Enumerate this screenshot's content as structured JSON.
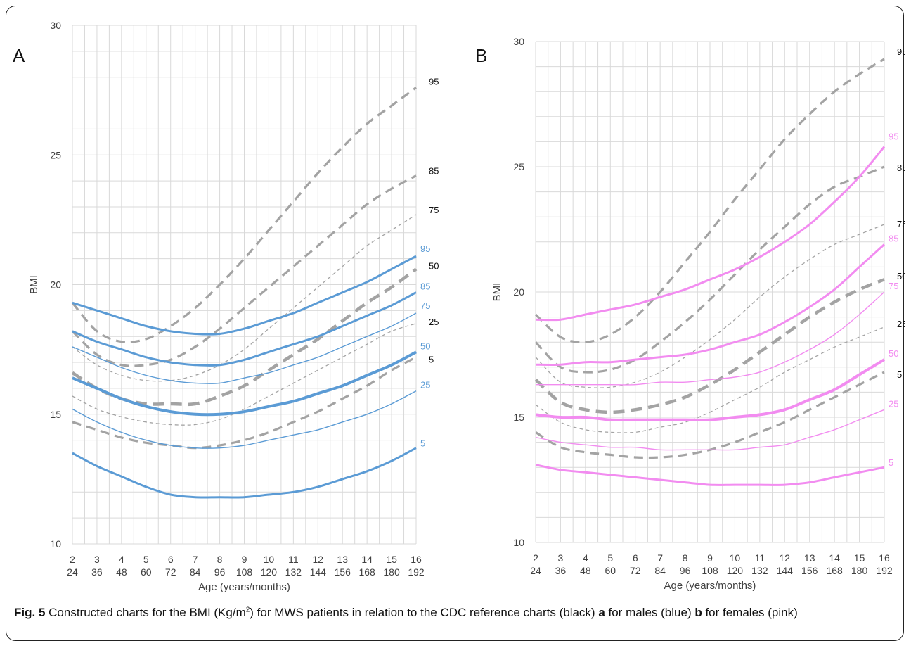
{
  "caption": {
    "fig": "Fig. 5",
    "part1": " Constructed charts for the BMI (Kg/m",
    "sup": "2",
    "part2": ") for MWS patients in relation to the CDC reference charts (black) ",
    "a": "a",
    "part3": " for males (blue) ",
    "b": "b",
    "part4": " for females (pink)"
  },
  "colors": {
    "reference": "#a3a3a3",
    "male": "#5b9bd5",
    "female": "#f28cf0",
    "grid": "#d9d9d9",
    "ref_label": "#111111"
  },
  "chart_data": [
    {
      "type": "line",
      "panel_label": "A",
      "xlabel": "Age (years/months)",
      "ylabel": "BMI",
      "ylim": [
        10,
        30
      ],
      "yticks": [
        10,
        15,
        20,
        25,
        30
      ],
      "xlim": [
        2,
        16
      ],
      "xticks_years": [
        "2",
        "3",
        "4",
        "5",
        "6",
        "7",
        "8",
        "9",
        "10",
        "11",
        "12",
        "13",
        "14",
        "15",
        "16"
      ],
      "xticks_months": [
        "24",
        "36",
        "48",
        "60",
        "72",
        "84",
        "96",
        "108",
        "120",
        "132",
        "144",
        "156",
        "168",
        "180",
        "192"
      ],
      "grid": true,
      "x": [
        2,
        3,
        4,
        5,
        6,
        7,
        8,
        9,
        10,
        11,
        12,
        13,
        14,
        15,
        16
      ],
      "series": [
        {
          "name": "95",
          "group": "reference",
          "values": [
            19.3,
            18.2,
            17.8,
            17.9,
            18.4,
            19.1,
            20.0,
            21.0,
            22.1,
            23.2,
            24.3,
            25.3,
            26.2,
            26.9,
            27.6
          ]
        },
        {
          "name": "85",
          "group": "reference",
          "values": [
            18.2,
            17.3,
            16.9,
            16.9,
            17.1,
            17.6,
            18.3,
            19.1,
            19.9,
            20.7,
            21.5,
            22.3,
            23.1,
            23.7,
            24.2
          ]
        },
        {
          "name": "75",
          "group": "reference",
          "values": [
            17.6,
            16.9,
            16.5,
            16.3,
            16.3,
            16.5,
            16.9,
            17.5,
            18.3,
            19.1,
            19.9,
            20.7,
            21.5,
            22.1,
            22.7
          ]
        },
        {
          "name": "50",
          "group": "reference",
          "values": [
            16.6,
            16.0,
            15.6,
            15.4,
            15.4,
            15.4,
            15.7,
            16.1,
            16.7,
            17.3,
            17.9,
            18.6,
            19.3,
            19.9,
            20.6
          ]
        },
        {
          "name": "25",
          "group": "reference",
          "values": [
            15.7,
            15.2,
            14.9,
            14.7,
            14.6,
            14.6,
            14.8,
            15.2,
            15.7,
            16.2,
            16.7,
            17.2,
            17.7,
            18.2,
            18.5
          ]
        },
        {
          "name": "5",
          "group": "reference",
          "values": [
            14.7,
            14.4,
            14.1,
            13.9,
            13.8,
            13.7,
            13.8,
            14.0,
            14.3,
            14.7,
            15.1,
            15.6,
            16.1,
            16.7,
            17.2
          ]
        },
        {
          "name": "95",
          "group": "male",
          "values": [
            19.3,
            19.0,
            18.7,
            18.4,
            18.2,
            18.1,
            18.1,
            18.3,
            18.6,
            18.9,
            19.3,
            19.7,
            20.1,
            20.6,
            21.1
          ]
        },
        {
          "name": "85",
          "group": "male",
          "values": [
            18.2,
            17.8,
            17.5,
            17.2,
            17.0,
            16.9,
            16.9,
            17.1,
            17.4,
            17.7,
            18.0,
            18.4,
            18.8,
            19.2,
            19.7
          ]
        },
        {
          "name": "75",
          "group": "male",
          "values": [
            17.6,
            17.2,
            16.8,
            16.5,
            16.3,
            16.2,
            16.2,
            16.4,
            16.6,
            16.9,
            17.2,
            17.6,
            18.0,
            18.4,
            18.9
          ]
        },
        {
          "name": "50",
          "group": "male",
          "values": [
            16.4,
            16.0,
            15.6,
            15.3,
            15.1,
            15.0,
            15.0,
            15.1,
            15.3,
            15.5,
            15.8,
            16.1,
            16.5,
            16.9,
            17.4
          ]
        },
        {
          "name": "25",
          "group": "male",
          "values": [
            15.2,
            14.7,
            14.3,
            14.0,
            13.8,
            13.7,
            13.7,
            13.8,
            14.0,
            14.2,
            14.4,
            14.7,
            15.0,
            15.4,
            15.9
          ]
        },
        {
          "name": "5",
          "group": "male",
          "values": [
            13.5,
            13.0,
            12.6,
            12.2,
            11.9,
            11.8,
            11.8,
            11.8,
            11.9,
            12.0,
            12.2,
            12.5,
            12.8,
            13.2,
            13.7
          ]
        }
      ]
    },
    {
      "type": "line",
      "panel_label": "B",
      "xlabel": "Age (years/months)",
      "ylabel": "BMI",
      "ylim": [
        10,
        30
      ],
      "yticks": [
        10,
        15,
        20,
        25,
        30
      ],
      "xlim": [
        2,
        16
      ],
      "xticks_years": [
        "2",
        "3",
        "4",
        "5",
        "6",
        "7",
        "8",
        "9",
        "10",
        "11",
        "12",
        "13",
        "14",
        "15",
        "16"
      ],
      "xticks_months": [
        "24",
        "36",
        "48",
        "60",
        "72",
        "84",
        "96",
        "108",
        "120",
        "132",
        "144",
        "156",
        "168",
        "180",
        "192"
      ],
      "grid": true,
      "x": [
        2,
        3,
        4,
        5,
        6,
        7,
        8,
        9,
        10,
        11,
        12,
        13,
        14,
        15,
        16
      ],
      "series": [
        {
          "name": "95",
          "group": "reference",
          "values": [
            19.1,
            18.2,
            18.0,
            18.3,
            19.0,
            20.0,
            21.2,
            22.4,
            23.7,
            24.9,
            26.1,
            27.1,
            28.0,
            28.7,
            29.3
          ]
        },
        {
          "name": "85",
          "group": "reference",
          "values": [
            18.0,
            17.0,
            16.8,
            16.9,
            17.3,
            18.0,
            18.8,
            19.7,
            20.7,
            21.7,
            22.6,
            23.5,
            24.2,
            24.6,
            25.0
          ]
        },
        {
          "name": "75",
          "group": "reference",
          "values": [
            17.4,
            16.4,
            16.2,
            16.2,
            16.4,
            16.8,
            17.4,
            18.1,
            18.9,
            19.8,
            20.6,
            21.3,
            21.9,
            22.3,
            22.7
          ]
        },
        {
          "name": "50",
          "group": "reference",
          "values": [
            16.5,
            15.6,
            15.3,
            15.2,
            15.3,
            15.5,
            15.8,
            16.3,
            16.9,
            17.6,
            18.3,
            19.0,
            19.6,
            20.1,
            20.5
          ]
        },
        {
          "name": "25",
          "group": "reference",
          "values": [
            15.5,
            14.8,
            14.5,
            14.4,
            14.4,
            14.6,
            14.8,
            15.2,
            15.7,
            16.2,
            16.8,
            17.3,
            17.8,
            18.2,
            18.6
          ]
        },
        {
          "name": "5",
          "group": "reference",
          "values": [
            14.4,
            13.8,
            13.6,
            13.5,
            13.4,
            13.4,
            13.5,
            13.7,
            14.0,
            14.4,
            14.8,
            15.3,
            15.8,
            16.3,
            16.8
          ]
        },
        {
          "name": "95",
          "group": "female",
          "values": [
            18.9,
            18.9,
            19.1,
            19.3,
            19.5,
            19.8,
            20.1,
            20.5,
            20.9,
            21.4,
            22.0,
            22.7,
            23.6,
            24.6,
            25.8
          ]
        },
        {
          "name": "85",
          "group": "female",
          "values": [
            17.1,
            17.1,
            17.2,
            17.2,
            17.3,
            17.4,
            17.5,
            17.7,
            18.0,
            18.3,
            18.8,
            19.4,
            20.1,
            21.0,
            21.9
          ]
        },
        {
          "name": "75",
          "group": "female",
          "values": [
            16.3,
            16.3,
            16.3,
            16.3,
            16.3,
            16.4,
            16.4,
            16.5,
            16.6,
            16.8,
            17.2,
            17.7,
            18.3,
            19.1,
            20.0
          ]
        },
        {
          "name": "50",
          "group": "female",
          "values": [
            15.1,
            15.0,
            15.0,
            14.9,
            14.9,
            14.9,
            14.9,
            14.9,
            15.0,
            15.1,
            15.3,
            15.7,
            16.1,
            16.7,
            17.3
          ]
        },
        {
          "name": "25",
          "group": "female",
          "values": [
            14.2,
            14.0,
            13.9,
            13.8,
            13.8,
            13.7,
            13.7,
            13.7,
            13.7,
            13.8,
            13.9,
            14.2,
            14.5,
            14.9,
            15.3
          ]
        },
        {
          "name": "5",
          "group": "female",
          "values": [
            13.1,
            12.9,
            12.8,
            12.7,
            12.6,
            12.5,
            12.4,
            12.3,
            12.3,
            12.3,
            12.3,
            12.4,
            12.6,
            12.8,
            13.0
          ]
        }
      ]
    }
  ]
}
